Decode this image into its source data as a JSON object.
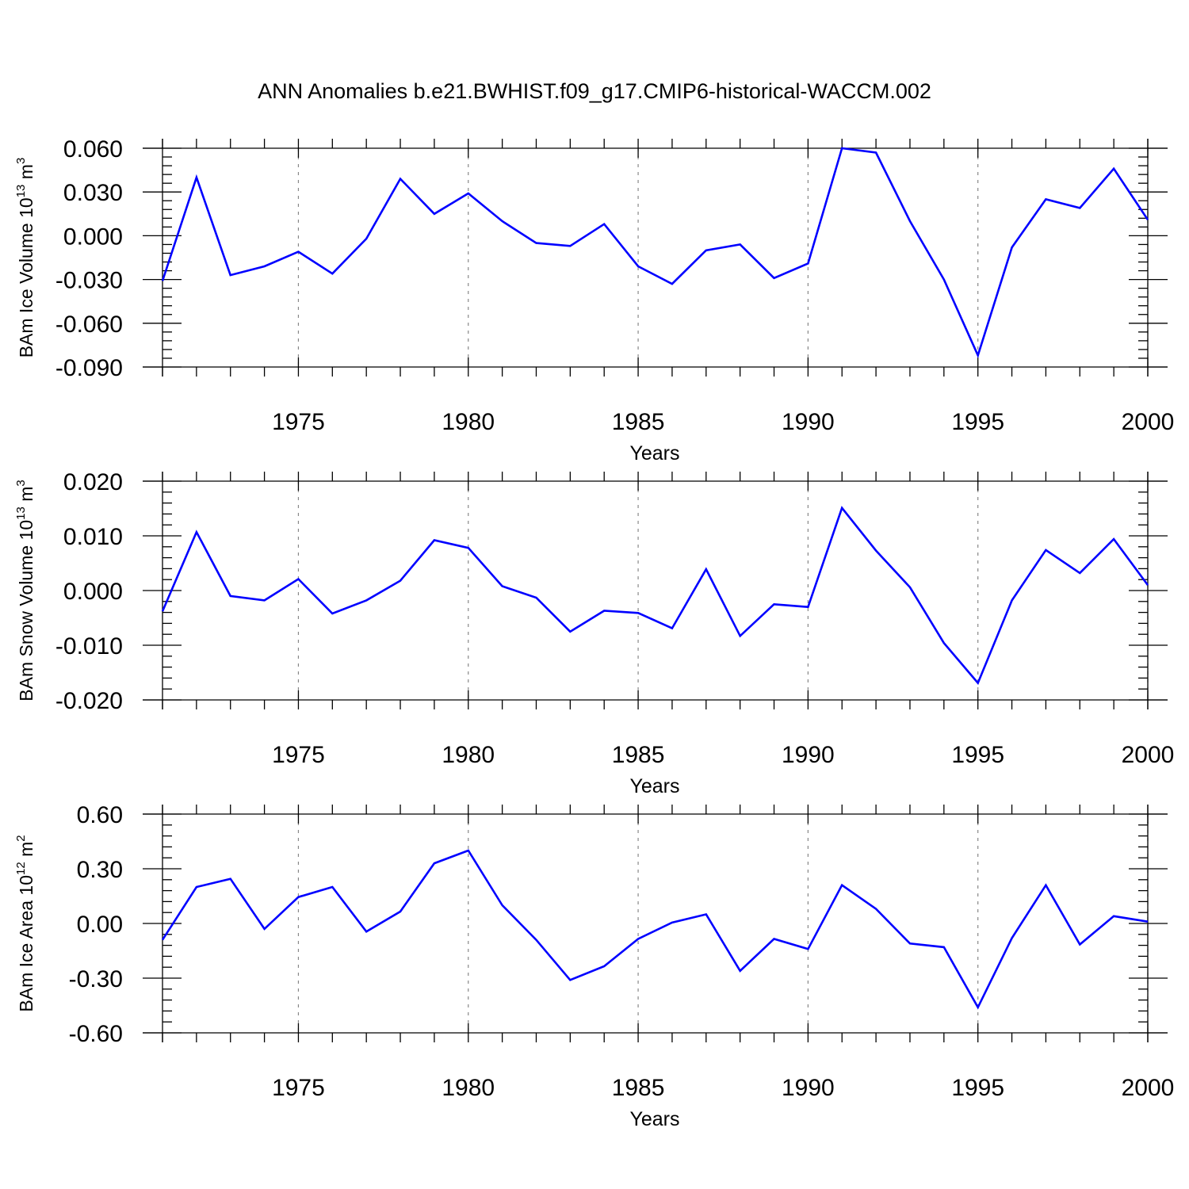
{
  "title": "ANN Anomalies b.e21.BWHIST.f09_g17.CMIP6-historical-WACCM.002",
  "colors": {
    "line": "#0000ff",
    "axis": "#000000",
    "grid": "#888888"
  },
  "chart_data": [
    {
      "type": "line",
      "ylabel_main": "BAm Ice Volume 10",
      "ylabel_exp": "13",
      "ylabel_unit": " m",
      "ylabel_unit_exp": "3",
      "xlabel": "Years",
      "xlim": [
        1971,
        2000
      ],
      "ylim": [
        -0.09,
        0.06
      ],
      "yticks": [
        0.06,
        0.03,
        0.0,
        -0.03,
        -0.06,
        -0.09
      ],
      "ytick_labels": [
        "0.060",
        "0.030",
        "0.000",
        "-0.030",
        "-0.060",
        "-0.090"
      ],
      "xticks": [
        1975,
        1980,
        1985,
        1990,
        1995,
        2000
      ],
      "xtick_labels": [
        "1975",
        "1980",
        "1985",
        "1990",
        "1995",
        "2000"
      ],
      "grid": "dashed vertical at 5-year ticks",
      "x": [
        1971,
        1972,
        1973,
        1974,
        1975,
        1976,
        1977,
        1978,
        1979,
        1980,
        1981,
        1982,
        1983,
        1984,
        1985,
        1986,
        1987,
        1988,
        1989,
        1990,
        1991,
        1992,
        1993,
        1994,
        1995,
        1996,
        1997,
        1998,
        1999,
        2000
      ],
      "series": [
        {
          "values": [
            -0.031,
            0.04,
            -0.027,
            -0.021,
            -0.011,
            -0.026,
            -0.002,
            0.039,
            0.015,
            0.029,
            0.01,
            -0.005,
            -0.007,
            0.008,
            -0.021,
            -0.033,
            -0.01,
            -0.006,
            -0.029,
            -0.019,
            0.06,
            0.057,
            0.01,
            -0.03,
            -0.082,
            -0.008,
            0.025,
            0.019,
            0.046,
            0.011
          ]
        }
      ]
    },
    {
      "type": "line",
      "ylabel_main": "BAm Snow Volume 10",
      "ylabel_exp": "13",
      "ylabel_unit": " m",
      "ylabel_unit_exp": "3",
      "xlabel": "Years",
      "xlim": [
        1971,
        2000
      ],
      "ylim": [
        -0.02,
        0.02
      ],
      "yticks": [
        0.02,
        0.01,
        0.0,
        -0.01,
        -0.02
      ],
      "ytick_labels": [
        "0.020",
        "0.010",
        "0.000",
        "-0.010",
        "-0.020"
      ],
      "xticks": [
        1975,
        1980,
        1985,
        1990,
        1995,
        2000
      ],
      "xtick_labels": [
        "1975",
        "1980",
        "1985",
        "1990",
        "1995",
        "2000"
      ],
      "grid": "dashed vertical at 5-year ticks",
      "x": [
        1971,
        1972,
        1973,
        1974,
        1975,
        1976,
        1977,
        1978,
        1979,
        1980,
        1981,
        1982,
        1983,
        1984,
        1985,
        1986,
        1987,
        1988,
        1989,
        1990,
        1991,
        1992,
        1993,
        1994,
        1995,
        1996,
        1997,
        1998,
        1999,
        2000
      ],
      "series": [
        {
          "values": [
            -0.0038,
            0.0107,
            -0.001,
            -0.0018,
            0.0021,
            -0.0042,
            -0.0018,
            0.0018,
            0.0092,
            0.0078,
            0.0008,
            -0.0013,
            -0.0075,
            -0.0037,
            -0.0041,
            -0.0069,
            0.0039,
            -0.0083,
            -0.0025,
            -0.003,
            0.0151,
            0.0073,
            0.0006,
            -0.0096,
            -0.0169,
            -0.0018,
            0.0074,
            0.0032,
            0.0094,
            0.001
          ]
        }
      ]
    },
    {
      "type": "line",
      "ylabel_main": "BAm Ice Area 10",
      "ylabel_exp": "12",
      "ylabel_unit": " m",
      "ylabel_unit_exp": "2",
      "xlabel": "Years",
      "xlim": [
        1971,
        2000
      ],
      "ylim": [
        -0.6,
        0.6
      ],
      "yticks": [
        0.6,
        0.3,
        0.0,
        -0.3,
        -0.6
      ],
      "ytick_labels": [
        "0.60",
        "0.30",
        "0.00",
        "-0.30",
        "-0.60"
      ],
      "xticks": [
        1975,
        1980,
        1985,
        1990,
        1995,
        2000
      ],
      "xtick_labels": [
        "1975",
        "1980",
        "1985",
        "1990",
        "1995",
        "2000"
      ],
      "grid": "dashed vertical at 5-year ticks",
      "x": [
        1971,
        1972,
        1973,
        1974,
        1975,
        1976,
        1977,
        1978,
        1979,
        1980,
        1981,
        1982,
        1983,
        1984,
        1985,
        1986,
        1987,
        1988,
        1989,
        1990,
        1991,
        1992,
        1993,
        1994,
        1995,
        1996,
        1997,
        1998,
        1999,
        2000
      ],
      "series": [
        {
          "values": [
            -0.09,
            0.2,
            0.245,
            -0.03,
            0.145,
            0.2,
            -0.045,
            0.065,
            0.33,
            0.4,
            0.1,
            -0.09,
            -0.31,
            -0.235,
            -0.085,
            0.005,
            0.05,
            -0.26,
            -0.085,
            -0.14,
            0.21,
            0.08,
            -0.11,
            -0.13,
            -0.46,
            -0.08,
            0.21,
            -0.115,
            0.04,
            0.01
          ]
        }
      ]
    }
  ]
}
